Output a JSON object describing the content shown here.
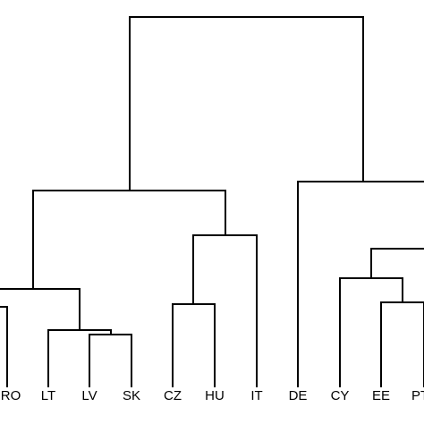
{
  "diagram": {
    "type": "dendrogram",
    "leaves": [
      "RO",
      "LT",
      "LV",
      "SK",
      "CZ",
      "HU",
      "IT",
      "DE",
      "CY",
      "EE",
      "PT"
    ],
    "line_color": "#000000",
    "background": "#ffffff"
  }
}
